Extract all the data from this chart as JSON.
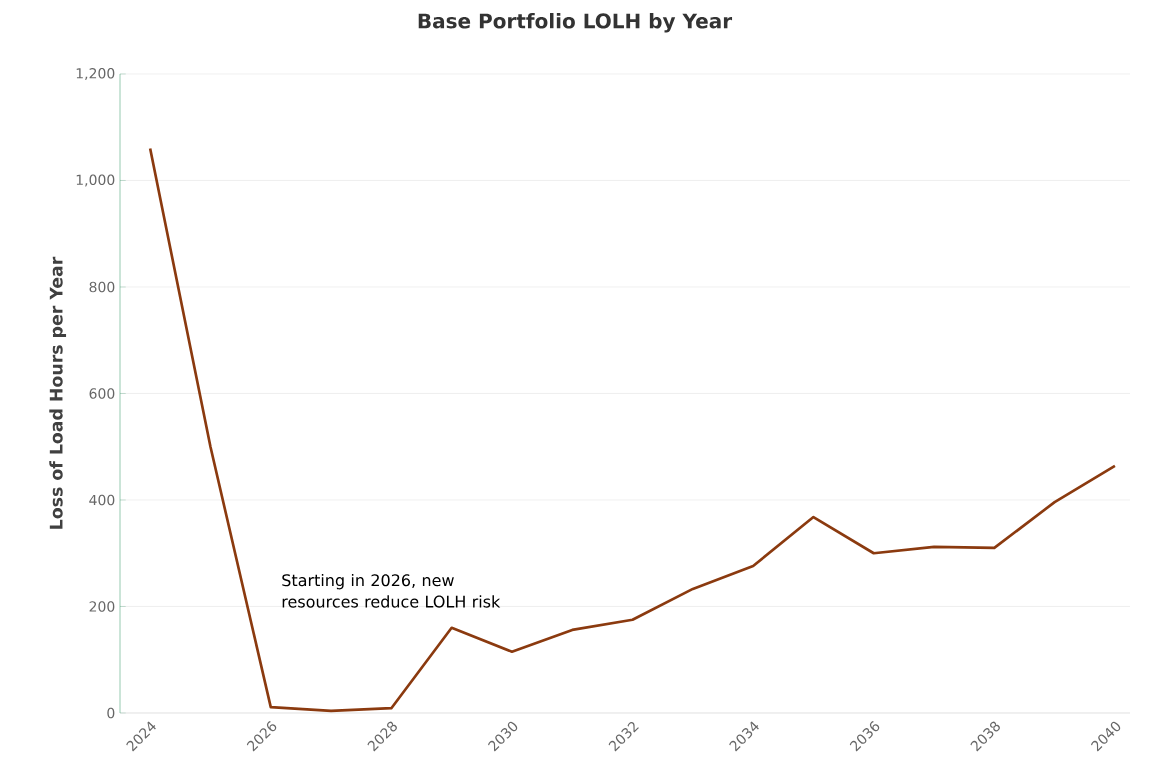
{
  "chart_data": {
    "type": "line",
    "title": "Base Portfolio LOLH by Year",
    "ylabel": "Loss of Load Hours per Year",
    "x": [
      2024,
      2025,
      2026,
      2027,
      2028,
      2029,
      2030,
      2031,
      2032,
      2033,
      2034,
      2035,
      2036,
      2037,
      2038,
      2039,
      2040
    ],
    "series": [
      {
        "color": "#8b3a0f",
        "values": [
          1060,
          500,
          11,
          4,
          9,
          160,
          115,
          156,
          175,
          233,
          276,
          368,
          300,
          312,
          310,
          396,
          464
        ]
      }
    ],
    "xlim": [
      2023.5,
      2040.25
    ],
    "xticks": [
      2024,
      2026,
      2028,
      2030,
      2032,
      2034,
      2036,
      2038,
      2040
    ],
    "ylim": [
      0,
      1200
    ],
    "yticks": [
      0,
      200,
      400,
      600,
      800,
      {
        "value": 1000,
        "label": "1,000"
      },
      {
        "value": 1200,
        "label": "1,200"
      }
    ],
    "grid": "y",
    "marker": "none",
    "line_style": "solid",
    "annotations": [
      "Starting in 2026, new resources reduce LOLH risk"
    ]
  }
}
